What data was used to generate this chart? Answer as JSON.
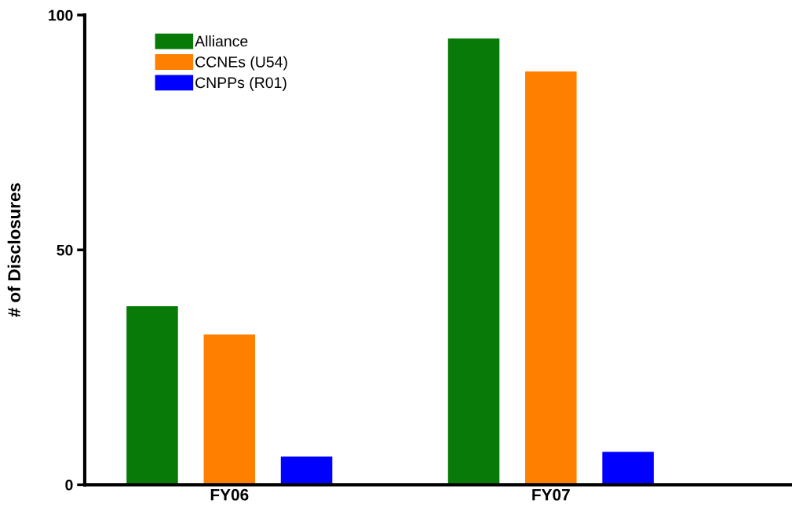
{
  "chart_data": {
    "type": "bar",
    "ylabel": "# of Disclosures",
    "categories": [
      "FY06",
      "FY07"
    ],
    "series": [
      {
        "name": "Alliance",
        "color": "#077a07",
        "values": [
          38,
          95
        ]
      },
      {
        "name": "CCNEs (U54)",
        "color": "#ff8000",
        "values": [
          32,
          88
        ]
      },
      {
        "name": "CNPPs (R01)",
        "color": "#0000ff",
        "values": [
          6,
          7
        ]
      }
    ],
    "ylim": [
      0,
      100
    ],
    "yticks": [
      0,
      50,
      100
    ],
    "grid": false,
    "legend": "top left"
  }
}
